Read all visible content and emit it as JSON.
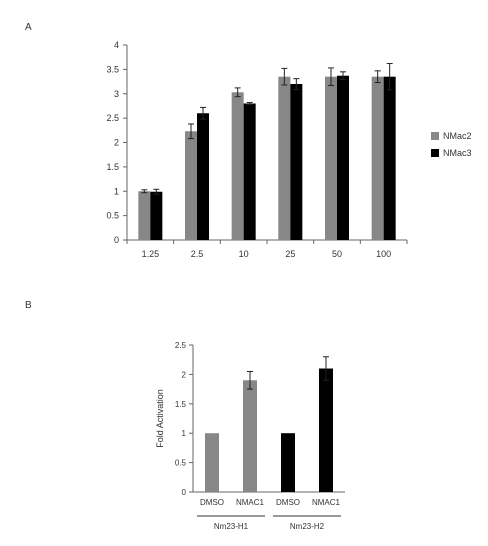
{
  "panels": {
    "a_label": "A",
    "b_label": "B"
  },
  "chart_data": [
    {
      "id": "A",
      "type": "bar",
      "categories": [
        "1.25",
        "2.5",
        "10",
        "25",
        "50",
        "100"
      ],
      "series": [
        {
          "name": "NMac2",
          "color": "#878787",
          "values": [
            1.0,
            2.23,
            3.03,
            3.35,
            3.35,
            3.35
          ],
          "errors": [
            0.03,
            0.15,
            0.09,
            0.17,
            0.18,
            0.12
          ]
        },
        {
          "name": "NMac3",
          "color": "#000000",
          "values": [
            0.99,
            2.6,
            2.8,
            3.2,
            3.37,
            3.35
          ],
          "errors": [
            0.05,
            0.12,
            0.02,
            0.11,
            0.08,
            0.27
          ]
        }
      ],
      "ylim": [
        0,
        4
      ],
      "yticks": [
        "0",
        "0.5",
        "1",
        "1.5",
        "2",
        "2.5",
        "3",
        "3.5",
        "4"
      ],
      "legend": "right",
      "grid": false
    },
    {
      "id": "B",
      "type": "bar",
      "categories": [
        "DMSO",
        "NMAC1",
        "DMSO",
        "NMAC1"
      ],
      "groups": [
        "Nm23-H1",
        "Nm23-H2"
      ],
      "values": [
        1.0,
        1.9,
        1.0,
        2.1
      ],
      "errors": [
        0,
        0.15,
        0,
        0.2
      ],
      "colors": [
        "#878787",
        "#878787",
        "#000000",
        "#000000"
      ],
      "ylabel": "Fold Activation",
      "ylim": [
        0,
        2.5
      ],
      "yticks": [
        "0",
        "0.5",
        "1",
        "1.5",
        "2",
        "2.5"
      ],
      "grid": false
    }
  ]
}
